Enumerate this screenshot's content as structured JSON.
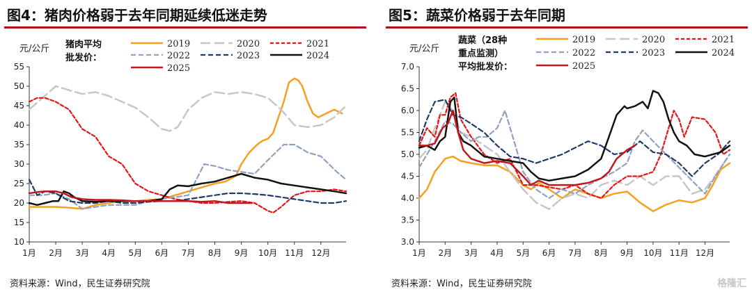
{
  "watermark": "格隆汇",
  "chart_data": [
    {
      "type": "line",
      "title": "图4：猪肉价格弱于去年同期延续低迷走势",
      "source": "资料来源：Wind，民生证券研究院",
      "ylabel": "元/公斤",
      "note_lines": [
        "猪肉平均",
        "批发价："
      ],
      "ylim": [
        10,
        55
      ],
      "yticks": [
        10,
        15,
        20,
        25,
        30,
        35,
        40,
        45,
        50,
        55
      ],
      "xlim": [
        1,
        12.95
      ],
      "xticks": [
        "1月",
        "2月",
        "3月",
        "4月",
        "5月",
        "6月",
        "7月",
        "8月",
        "9月",
        "10月",
        "11月",
        "12月"
      ],
      "legend_ncol": 3,
      "series": [
        {
          "name": "2019",
          "color": "#f5a020",
          "dash": "",
          "width": 2.5,
          "x": [
            1,
            1.5,
            2,
            2.5,
            3,
            3.5,
            4,
            4.5,
            5,
            5.5,
            6,
            6.5,
            7,
            7.5,
            8,
            8.4,
            8.8,
            9,
            9.3,
            9.6,
            9.8,
            10,
            10.2,
            10.4,
            10.6,
            10.8,
            11,
            11.15,
            11.3,
            11.5,
            11.7,
            11.9,
            12.2,
            12.5,
            12.8
          ],
          "y": [
            19,
            19,
            19,
            18.8,
            18.5,
            19.5,
            20,
            20.5,
            20.5,
            20.8,
            21,
            22,
            23,
            24,
            25,
            25.5,
            27,
            30,
            33,
            35,
            36,
            36.5,
            38,
            42,
            46,
            51,
            52,
            51.5,
            50,
            46,
            43,
            42,
            43,
            44,
            43
          ]
        },
        {
          "name": "2020",
          "color": "#c6c6c6",
          "dash": "14,6",
          "width": 2.5,
          "x": [
            1,
            1.5,
            2,
            2.5,
            3,
            3.5,
            4,
            4.5,
            5,
            5.5,
            6,
            6.3,
            6.6,
            7,
            7.5,
            8,
            8.5,
            9,
            9.5,
            10,
            10.5,
            11,
            11.5,
            12,
            12.5,
            12.95
          ],
          "y": [
            44,
            47,
            50,
            49,
            48,
            48.5,
            47.5,
            46,
            44.5,
            42,
            39,
            38.5,
            39.5,
            44,
            47,
            48.5,
            48,
            48.5,
            48,
            47,
            44,
            40,
            39.5,
            40,
            42,
            45
          ]
        },
        {
          "name": "2021",
          "color": "#e21616",
          "dash": "5,3",
          "width": 2.2,
          "x": [
            1,
            1.3,
            1.6,
            2,
            2.5,
            3,
            3.5,
            4,
            4.5,
            5,
            5.5,
            6,
            6.5,
            7,
            7.5,
            8,
            8.5,
            9,
            9.5,
            10,
            10.2,
            10.5,
            11,
            11.5,
            12,
            12.5,
            12.95
          ],
          "y": [
            46,
            47,
            47,
            46,
            44,
            39,
            37,
            32,
            30,
            25,
            23,
            22,
            21,
            20.5,
            20,
            20,
            20.3,
            20.5,
            20,
            18,
            17.5,
            19,
            22,
            23,
            23,
            23.5,
            23
          ]
        },
        {
          "name": "2022",
          "color": "#8fa0c0",
          "dash": "7,4",
          "width": 2.2,
          "x": [
            1,
            1.5,
            2,
            2.5,
            3,
            3.5,
            4,
            4.5,
            5,
            5.5,
            6,
            6.5,
            7,
            7.3,
            7.6,
            8,
            8.5,
            9,
            9.5,
            10,
            10.3,
            10.6,
            11,
            11.5,
            12,
            12.3,
            12.6,
            12.95
          ],
          "y": [
            22,
            22,
            22.5,
            21,
            18.5,
            19,
            19.5,
            19.5,
            19.5,
            20.5,
            21,
            21.5,
            22,
            26,
            30,
            29.5,
            28.5,
            28,
            27.5,
            31,
            33,
            35,
            35,
            33,
            32,
            30,
            28,
            26
          ]
        },
        {
          "name": "2023",
          "color": "#1f3a68",
          "dash": "7,4",
          "width": 2.2,
          "x": [
            1,
            1.3,
            1.6,
            2,
            2.5,
            3,
            3.5,
            4,
            4.5,
            5,
            5.5,
            6,
            6.5,
            7,
            7.5,
            8,
            8.5,
            9,
            9.5,
            10,
            10.5,
            11,
            11.5,
            12,
            12.5,
            12.95
          ],
          "y": [
            26,
            22,
            23,
            22.5,
            20.5,
            20,
            20,
            20.5,
            20,
            20,
            20.3,
            20.5,
            20.5,
            21,
            21.5,
            22,
            22.5,
            22.5,
            22.3,
            22,
            21.5,
            21,
            20.5,
            20,
            20,
            20.5
          ]
        },
        {
          "name": "2024",
          "color": "#111111",
          "dash": "",
          "width": 2.5,
          "x": [
            1,
            1.3,
            1.6,
            1.9,
            2.1,
            2.3,
            2.5,
            2.7,
            3,
            3.5,
            4,
            4.5,
            5,
            5.5,
            6,
            6.3,
            6.6,
            7,
            7.5,
            8,
            8.5,
            9,
            9.5,
            10,
            10.5,
            11,
            11.5,
            12,
            12.5,
            12.95
          ],
          "y": [
            20,
            19.5,
            20,
            20.5,
            20.5,
            23,
            22.5,
            21.5,
            20.5,
            20.3,
            20.5,
            20.5,
            20.5,
            20.5,
            21,
            23.5,
            24.5,
            24.3,
            25,
            25.5,
            26.5,
            27.5,
            26.5,
            26,
            25,
            24.5,
            24,
            23.5,
            23,
            22.5
          ]
        },
        {
          "name": "2025",
          "color": "#c0181f",
          "dash": "",
          "width": 2.5,
          "x": [
            1,
            1.3,
            1.6,
            2,
            2.3,
            2.6,
            3,
            3.5,
            4,
            4.5,
            5,
            5.5,
            6,
            6.5,
            7,
            7.5,
            8,
            8.5,
            9,
            9.4
          ],
          "y": [
            22.5,
            22.8,
            23,
            23,
            22.5,
            21.5,
            21,
            20.8,
            20.8,
            20.7,
            20.5,
            20.5,
            20.5,
            20.5,
            20.5,
            20.3,
            20.5,
            20,
            20,
            20
          ]
        }
      ]
    },
    {
      "type": "line",
      "title": "图5：蔬菜价格弱于去年同期",
      "source": "资料来源：Wind，民生证券研究院",
      "ylabel": "元/公斤",
      "note_lines": [
        "蔬菜（28种",
        "重点监测）",
        "平均批发价："
      ],
      "ylim": [
        3.0,
        7.0
      ],
      "yticks": [
        "3.0",
        "3.5",
        "4.0",
        "4.5",
        "5.0",
        "5.5",
        "6.0",
        "6.5",
        "7.0"
      ],
      "xlim": [
        1,
        12.95
      ],
      "xticks": [
        "1月",
        "2月",
        "3月",
        "4月",
        "5月",
        "6月",
        "7月",
        "8月",
        "9月",
        "10月",
        "11月",
        "12月"
      ],
      "legend_ncol": 3,
      "series": [
        {
          "name": "2019",
          "color": "#f5a020",
          "dash": "",
          "width": 2.5,
          "x": [
            1,
            1.3,
            1.6,
            2,
            2.3,
            2.6,
            3,
            3.5,
            4,
            4.5,
            5,
            5.3,
            5.6,
            6,
            6.5,
            7,
            7.5,
            8,
            8.5,
            9,
            9.5,
            10,
            10.5,
            11,
            11.5,
            12,
            12.3,
            12.6,
            12.95
          ],
          "y": [
            4.0,
            4.2,
            4.6,
            4.9,
            4.95,
            4.85,
            4.8,
            4.75,
            4.75,
            4.6,
            4.3,
            4.2,
            4.35,
            4.2,
            4.0,
            4.2,
            4.1,
            4.0,
            4.1,
            4.15,
            3.9,
            3.7,
            3.85,
            3.95,
            3.9,
            4.0,
            4.3,
            4.65,
            4.8
          ]
        },
        {
          "name": "2020",
          "color": "#c6c6c6",
          "dash": "14,6",
          "width": 2.5,
          "x": [
            1,
            1.3,
            1.6,
            2,
            2.3,
            2.6,
            3,
            3.5,
            4,
            4.5,
            5,
            5.5,
            6,
            6.5,
            7,
            7.5,
            8,
            8.5,
            9,
            9.5,
            10,
            10.5,
            11,
            11.5,
            12,
            12.5,
            12.95
          ],
          "y": [
            4.9,
            5.1,
            5.6,
            6.2,
            6.0,
            5.5,
            5.4,
            5.2,
            5.0,
            4.6,
            4.2,
            3.9,
            3.75,
            4.0,
            4.1,
            4.0,
            4.3,
            4.4,
            4.3,
            4.5,
            4.3,
            4.5,
            4.5,
            4.1,
            4.2,
            4.6,
            5.0
          ]
        },
        {
          "name": "2021",
          "color": "#e21616",
          "dash": "5,3",
          "width": 2.2,
          "x": [
            1,
            1.3,
            1.6,
            1.8,
            2,
            2.2,
            2.4,
            2.6,
            3,
            3.5,
            4,
            4.5,
            5,
            5.5,
            6,
            6.5,
            7,
            7.5,
            8,
            8.5,
            9,
            9.5,
            10,
            10.3,
            10.6,
            10.8,
            11,
            11.2,
            11.5,
            12,
            12.4,
            12.7,
            12.95
          ],
          "y": [
            5.2,
            5.6,
            5.4,
            5.9,
            5.9,
            6.3,
            6.4,
            5.8,
            5.4,
            5.0,
            4.8,
            4.9,
            4.3,
            4.3,
            4.25,
            4.2,
            4.3,
            4.1,
            4.0,
            4.3,
            4.5,
            4.5,
            4.6,
            5.0,
            5.6,
            6.0,
            5.8,
            5.4,
            5.85,
            5.8,
            5.5,
            5.0,
            5.1
          ]
        },
        {
          "name": "2022",
          "color": "#8fa0c0",
          "dash": "7,4",
          "width": 2.2,
          "x": [
            1,
            1.3,
            1.6,
            2,
            2.3,
            2.6,
            3,
            3.3,
            3.6,
            4,
            4.3,
            4.6,
            5,
            5.5,
            6,
            6.5,
            7,
            7.5,
            8,
            8.5,
            9,
            9.3,
            9.6,
            10,
            10.5,
            11,
            11.5,
            12,
            12.5,
            12.95
          ],
          "y": [
            4.7,
            5.0,
            5.3,
            5.75,
            5.7,
            5.5,
            5.3,
            5.4,
            5.4,
            5.6,
            6.0,
            5.4,
            4.6,
            4.2,
            4.0,
            4.2,
            4.1,
            4.3,
            4.45,
            4.6,
            4.8,
            5.3,
            5.55,
            5.3,
            5.0,
            4.7,
            4.4,
            4.1,
            4.6,
            5.0
          ]
        },
        {
          "name": "2023",
          "color": "#1f3a68",
          "dash": "7,4",
          "width": 2.2,
          "x": [
            1,
            1.3,
            1.6,
            2,
            2.3,
            2.6,
            3,
            3.5,
            4,
            4.5,
            5,
            5.5,
            6,
            6.5,
            7,
            7.5,
            8,
            8.5,
            9,
            9.5,
            10,
            10.5,
            11,
            11.5,
            12,
            12.5,
            12.95
          ],
          "y": [
            5.3,
            5.8,
            6.2,
            6.25,
            5.9,
            5.85,
            5.7,
            5.5,
            5.2,
            4.95,
            4.9,
            4.8,
            4.9,
            5.0,
            5.15,
            5.3,
            5.2,
            5.0,
            5.05,
            5.3,
            5.05,
            5.0,
            4.8,
            4.5,
            4.8,
            5.0,
            5.3
          ]
        },
        {
          "name": "2024",
          "color": "#111111",
          "dash": "",
          "width": 2.5,
          "x": [
            1,
            1.3,
            1.6,
            1.8,
            2,
            2.2,
            2.35,
            2.5,
            2.7,
            3,
            3.5,
            4,
            4.5,
            5,
            5.3,
            5.6,
            6,
            6.5,
            7,
            7.5,
            8,
            8.3,
            8.6,
            8.9,
            9,
            9.3,
            9.6,
            9.8,
            10,
            10.2,
            10.4,
            10.6,
            10.8,
            11,
            11.3,
            11.6,
            12,
            12.3,
            12.6,
            12.95
          ],
          "y": [
            5.15,
            5.2,
            5.1,
            5.3,
            5.4,
            6.2,
            6.3,
            5.5,
            5.3,
            5.2,
            4.95,
            4.9,
            4.85,
            4.8,
            4.6,
            4.45,
            4.4,
            4.45,
            4.5,
            4.65,
            4.9,
            5.4,
            5.9,
            6.1,
            6.05,
            6.1,
            6.2,
            6.05,
            6.45,
            6.4,
            6.2,
            5.8,
            5.5,
            5.3,
            5.2,
            5.0,
            4.95,
            5.0,
            5.05,
            5.2
          ]
        },
        {
          "name": "2025",
          "color": "#c0181f",
          "dash": "",
          "width": 2.5,
          "x": [
            1,
            1.3,
            1.6,
            1.9,
            2.1,
            2.3,
            2.5,
            2.7,
            3,
            3.5,
            4,
            4.5,
            5,
            5.3,
            5.6,
            6,
            6.5,
            7,
            7.5,
            8,
            8.3,
            8.6,
            9,
            9.3
          ],
          "y": [
            5.2,
            5.2,
            5.25,
            5.6,
            5.7,
            6.0,
            5.5,
            5.1,
            4.9,
            4.8,
            4.85,
            4.8,
            4.5,
            4.3,
            4.4,
            4.3,
            4.3,
            4.3,
            4.35,
            4.45,
            4.6,
            4.9,
            5.1,
            5.2
          ]
        }
      ]
    }
  ]
}
